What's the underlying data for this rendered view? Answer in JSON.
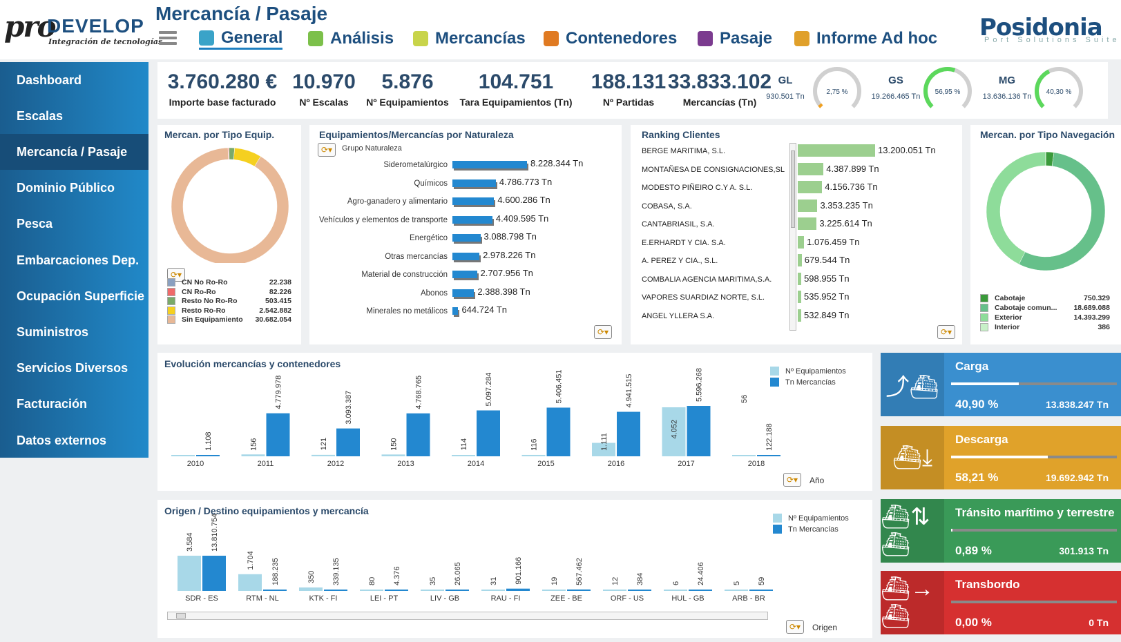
{
  "header": {
    "logo_pro": "pro",
    "logo_develop": "DEVELOP",
    "logo_tagline": "Integración de tecnologías",
    "page_title": "Mercancía / Pasaje",
    "brand": "Posidonia",
    "brand_sub": "Port Solutions Suite",
    "tabs": [
      {
        "label": "General",
        "icon": "bar-chart-icon",
        "color": "#3aa3c8",
        "active": true
      },
      {
        "label": "Análisis",
        "icon": "book-icon",
        "color": "#7cc04a"
      },
      {
        "label": "Mercancías",
        "icon": "boxes-icon",
        "color": "#c8d44a"
      },
      {
        "label": "Contenedores",
        "icon": "container-icon",
        "color": "#e07a22"
      },
      {
        "label": "Pasaje",
        "icon": "people-icon",
        "color": "#7b3b8f"
      },
      {
        "label": "Informe Ad hoc",
        "icon": "report-icon",
        "color": "#e0a02a"
      }
    ]
  },
  "sidebar": {
    "items": [
      {
        "label": "Dashboard"
      },
      {
        "label": "Escalas"
      },
      {
        "label": "Mercancía / Pasaje",
        "active": true
      },
      {
        "label": "Dominio Público"
      },
      {
        "label": "Pesca"
      },
      {
        "label": "Embarcaciones Dep."
      },
      {
        "label": "Ocupación Superficie"
      },
      {
        "label": "Suministros"
      },
      {
        "label": "Servicios Diversos"
      },
      {
        "label": "Facturación"
      },
      {
        "label": "Datos externos"
      }
    ]
  },
  "kpis": [
    {
      "value": "3.760.280 €",
      "label": "Importe base facturado"
    },
    {
      "value": "10.970",
      "label": "Nº Escalas"
    },
    {
      "value": "5.876",
      "label": "Nº Equipamientos"
    },
    {
      "value": "104.751",
      "label": "Tara Equipamientos (Tn)"
    },
    {
      "value": "188.131",
      "label": "Nº Partidas"
    },
    {
      "value": "33.833.102",
      "label": "Mercancías (Tn)"
    }
  ],
  "gauges": [
    {
      "code": "GL",
      "tn": "930.501 Tn",
      "pct": "2,75 %",
      "fraction": 0.0275,
      "color": "#f0a020"
    },
    {
      "code": "GS",
      "tn": "19.266.465 Tn",
      "pct": "56,95 %",
      "fraction": 0.5695,
      "color": "#5cd85c"
    },
    {
      "code": "MG",
      "tn": "13.636.136 Tn",
      "pct": "40,30 %",
      "fraction": 0.403,
      "color": "#5cd85c"
    }
  ],
  "tipo_equip": {
    "title": "Mercan. por Tipo Equip.",
    "items": [
      {
        "name": "CN No Ro-Ro",
        "value": "22.238",
        "num": 22238,
        "color": "#8aa0c0"
      },
      {
        "name": "CN Ro-Ro",
        "value": "82.226",
        "num": 82226,
        "color": "#f06a6a"
      },
      {
        "name": "Resto No Ro-Ro",
        "value": "503.415",
        "num": 503415,
        "color": "#7aaa6a"
      },
      {
        "name": "Resto Ro-Ro",
        "value": "2.542.882",
        "num": 2542882,
        "color": "#f5d020"
      },
      {
        "name": "Sin Equipamiento",
        "value": "30.682.054",
        "num": 30682054,
        "color": "#e8b896"
      }
    ]
  },
  "naturaleza": {
    "title": "Equipamientos/Mercancías por Naturaleza",
    "subtitle": "Grupo Naturaleza",
    "items": [
      {
        "name": "Siderometalúrgico",
        "value": "8.228.344 Tn",
        "num": 8228344
      },
      {
        "name": "Químicos",
        "value": "4.786.773 Tn",
        "num": 4786773
      },
      {
        "name": "Agro-ganadero y alimentario",
        "value": "4.600.286 Tn",
        "num": 4600286
      },
      {
        "name": "Vehículos y elementos de transporte",
        "value": "4.409.595 Tn",
        "num": 4409595
      },
      {
        "name": "Energético",
        "value": "3.088.798 Tn",
        "num": 3088798
      },
      {
        "name": "Otras mercancías",
        "value": "2.978.226 Tn",
        "num": 2978226
      },
      {
        "name": "Material de construcción",
        "value": "2.707.956 Tn",
        "num": 2707956
      },
      {
        "name": "Abonos",
        "value": "2.388.398 Tn",
        "num": 2388398
      },
      {
        "name": "Minerales no metálicos",
        "value": "644.724 Tn",
        "num": 644724
      }
    ]
  },
  "ranking": {
    "title": "Ranking Clientes",
    "items": [
      {
        "name": "BERGE MARITIMA, S.L.",
        "value": "13.200.051 Tn",
        "num": 13200051
      },
      {
        "name": "MONTAÑESA DE CONSIGNACIONES,SL",
        "value": "4.387.899 Tn",
        "num": 4387899
      },
      {
        "name": "MODESTO PIÑEIRO C.Y A. S.L.",
        "value": "4.156.736 Tn",
        "num": 4156736
      },
      {
        "name": "COBASA, S.A.",
        "value": "3.353.235 Tn",
        "num": 3353235
      },
      {
        "name": "CANTABRIASIL, S.A.",
        "value": "3.225.614 Tn",
        "num": 3225614
      },
      {
        "name": "E.ERHARDT Y CIA. S.A.",
        "value": "1.076.459 Tn",
        "num": 1076459
      },
      {
        "name": "A. PEREZ Y CIA., S.L.",
        "value": "679.544 Tn",
        "num": 679544
      },
      {
        "name": "COMBALIA AGENCIA MARITIMA,S.A.",
        "value": "598.955 Tn",
        "num": 598955
      },
      {
        "name": "VAPORES SUARDIAZ NORTE, S.L.",
        "value": "535.952 Tn",
        "num": 535952
      },
      {
        "name": "ANGEL YLLERA S.A.",
        "value": "532.849 Tn",
        "num": 532849
      }
    ]
  },
  "navegacion": {
    "title": "Mercan. por Tipo Navegación",
    "items": [
      {
        "name": "Cabotaje",
        "value": "750.329",
        "num": 750329,
        "color": "#3a9a3a"
      },
      {
        "name": "Cabotaje comun...",
        "value": "18.689.088",
        "num": 18689088,
        "color": "#66c08a"
      },
      {
        "name": "Exterior",
        "value": "14.393.299",
        "num": 14393299,
        "color": "#8edc9a"
      },
      {
        "name": "Interior",
        "value": "386",
        "num": 386,
        "color": "#c8f0c8"
      }
    ]
  },
  "evolucion": {
    "title": "Evolución mercancías y contenedores",
    "legend": [
      "Nº Equipamientos",
      "Tn Mercancías"
    ],
    "axis_label": "Año",
    "chart_data": {
      "type": "bar",
      "categories": [
        "2010",
        "2011",
        "2012",
        "2013",
        "2014",
        "2015",
        "2016",
        "2017",
        "2018"
      ],
      "series": [
        {
          "name": "Nº Equipamientos",
          "values": [
            0,
            156,
            121,
            150,
            114,
            116,
            1111,
            4052,
            56
          ],
          "labels": [
            "",
            "156",
            "121",
            "150",
            "114",
            "116",
            "1.111",
            "4.052",
            "56"
          ]
        },
        {
          "name": "Tn Mercancías",
          "values": [
            1108,
            4779978,
            3093387,
            4768765,
            5097284,
            5406451,
            4941515,
            5596268,
            122188
          ],
          "labels": [
            "1.108",
            "4.779.978",
            "3.093.387",
            "4.768.765",
            "5.097.284",
            "5.406.451",
            "4.941.515",
            "5.596.268",
            "122.188"
          ]
        }
      ]
    }
  },
  "origen": {
    "title": "Origen / Destino equipamientos y mercancía",
    "legend": [
      "Nº Equipamientos",
      "Tn Mercancías"
    ],
    "axis_label": "Origen",
    "chart_data": {
      "type": "bar",
      "categories": [
        "SDR - ES",
        "RTM - NL",
        "KTK - FI",
        "LEI - PT",
        "LIV - GB",
        "RAU - FI",
        "ZEE - BE",
        "ORF - US",
        "HUL - GB",
        "ARB - BR"
      ],
      "series": [
        {
          "name": "Nº Equipamientos",
          "values": [
            3584,
            1704,
            350,
            80,
            35,
            31,
            19,
            12,
            6,
            5
          ],
          "labels": [
            "3.584",
            "1.704",
            "350",
            "80",
            "35",
            "31",
            "19",
            "12",
            "6",
            "5"
          ]
        },
        {
          "name": "Tn Mercancías",
          "values": [
            13810754,
            188235,
            339135,
            4376,
            26065,
            901166,
            567462,
            384,
            24406,
            59
          ],
          "labels": [
            "13.810.754",
            "188.235",
            "339.135",
            "4.376",
            "26.065",
            "901.166",
            "567.462",
            "384",
            "24.406",
            "59"
          ]
        }
      ]
    }
  },
  "tiles": [
    {
      "title": "Carga",
      "pct": "40,90 %",
      "fraction": 0.409,
      "value": "13.838.247 Tn",
      "color": "#3a8fcf",
      "icon": "ship-load-icon",
      "glyph": "⤴⛴"
    },
    {
      "title": "Descarga",
      "pct": "58,21 %",
      "fraction": 0.5821,
      "value": "19.692.942 Tn",
      "color": "#e0a22a",
      "icon": "ship-unload-icon",
      "glyph": "⛴⤓"
    },
    {
      "title": "Tránsito marítimo y terrestre",
      "pct": "0,89 %",
      "fraction": 0.0089,
      "value": "301.913 Tn",
      "color": "#3a9a58",
      "icon": "transit-icon",
      "glyph": "⛴⇅⛴"
    },
    {
      "title": "Transbordo",
      "pct": "0,00 %",
      "fraction": 0.0,
      "value": "0 Tn",
      "color": "#d63030",
      "icon": "transshipment-icon",
      "glyph": "⛴→⛴"
    }
  ]
}
